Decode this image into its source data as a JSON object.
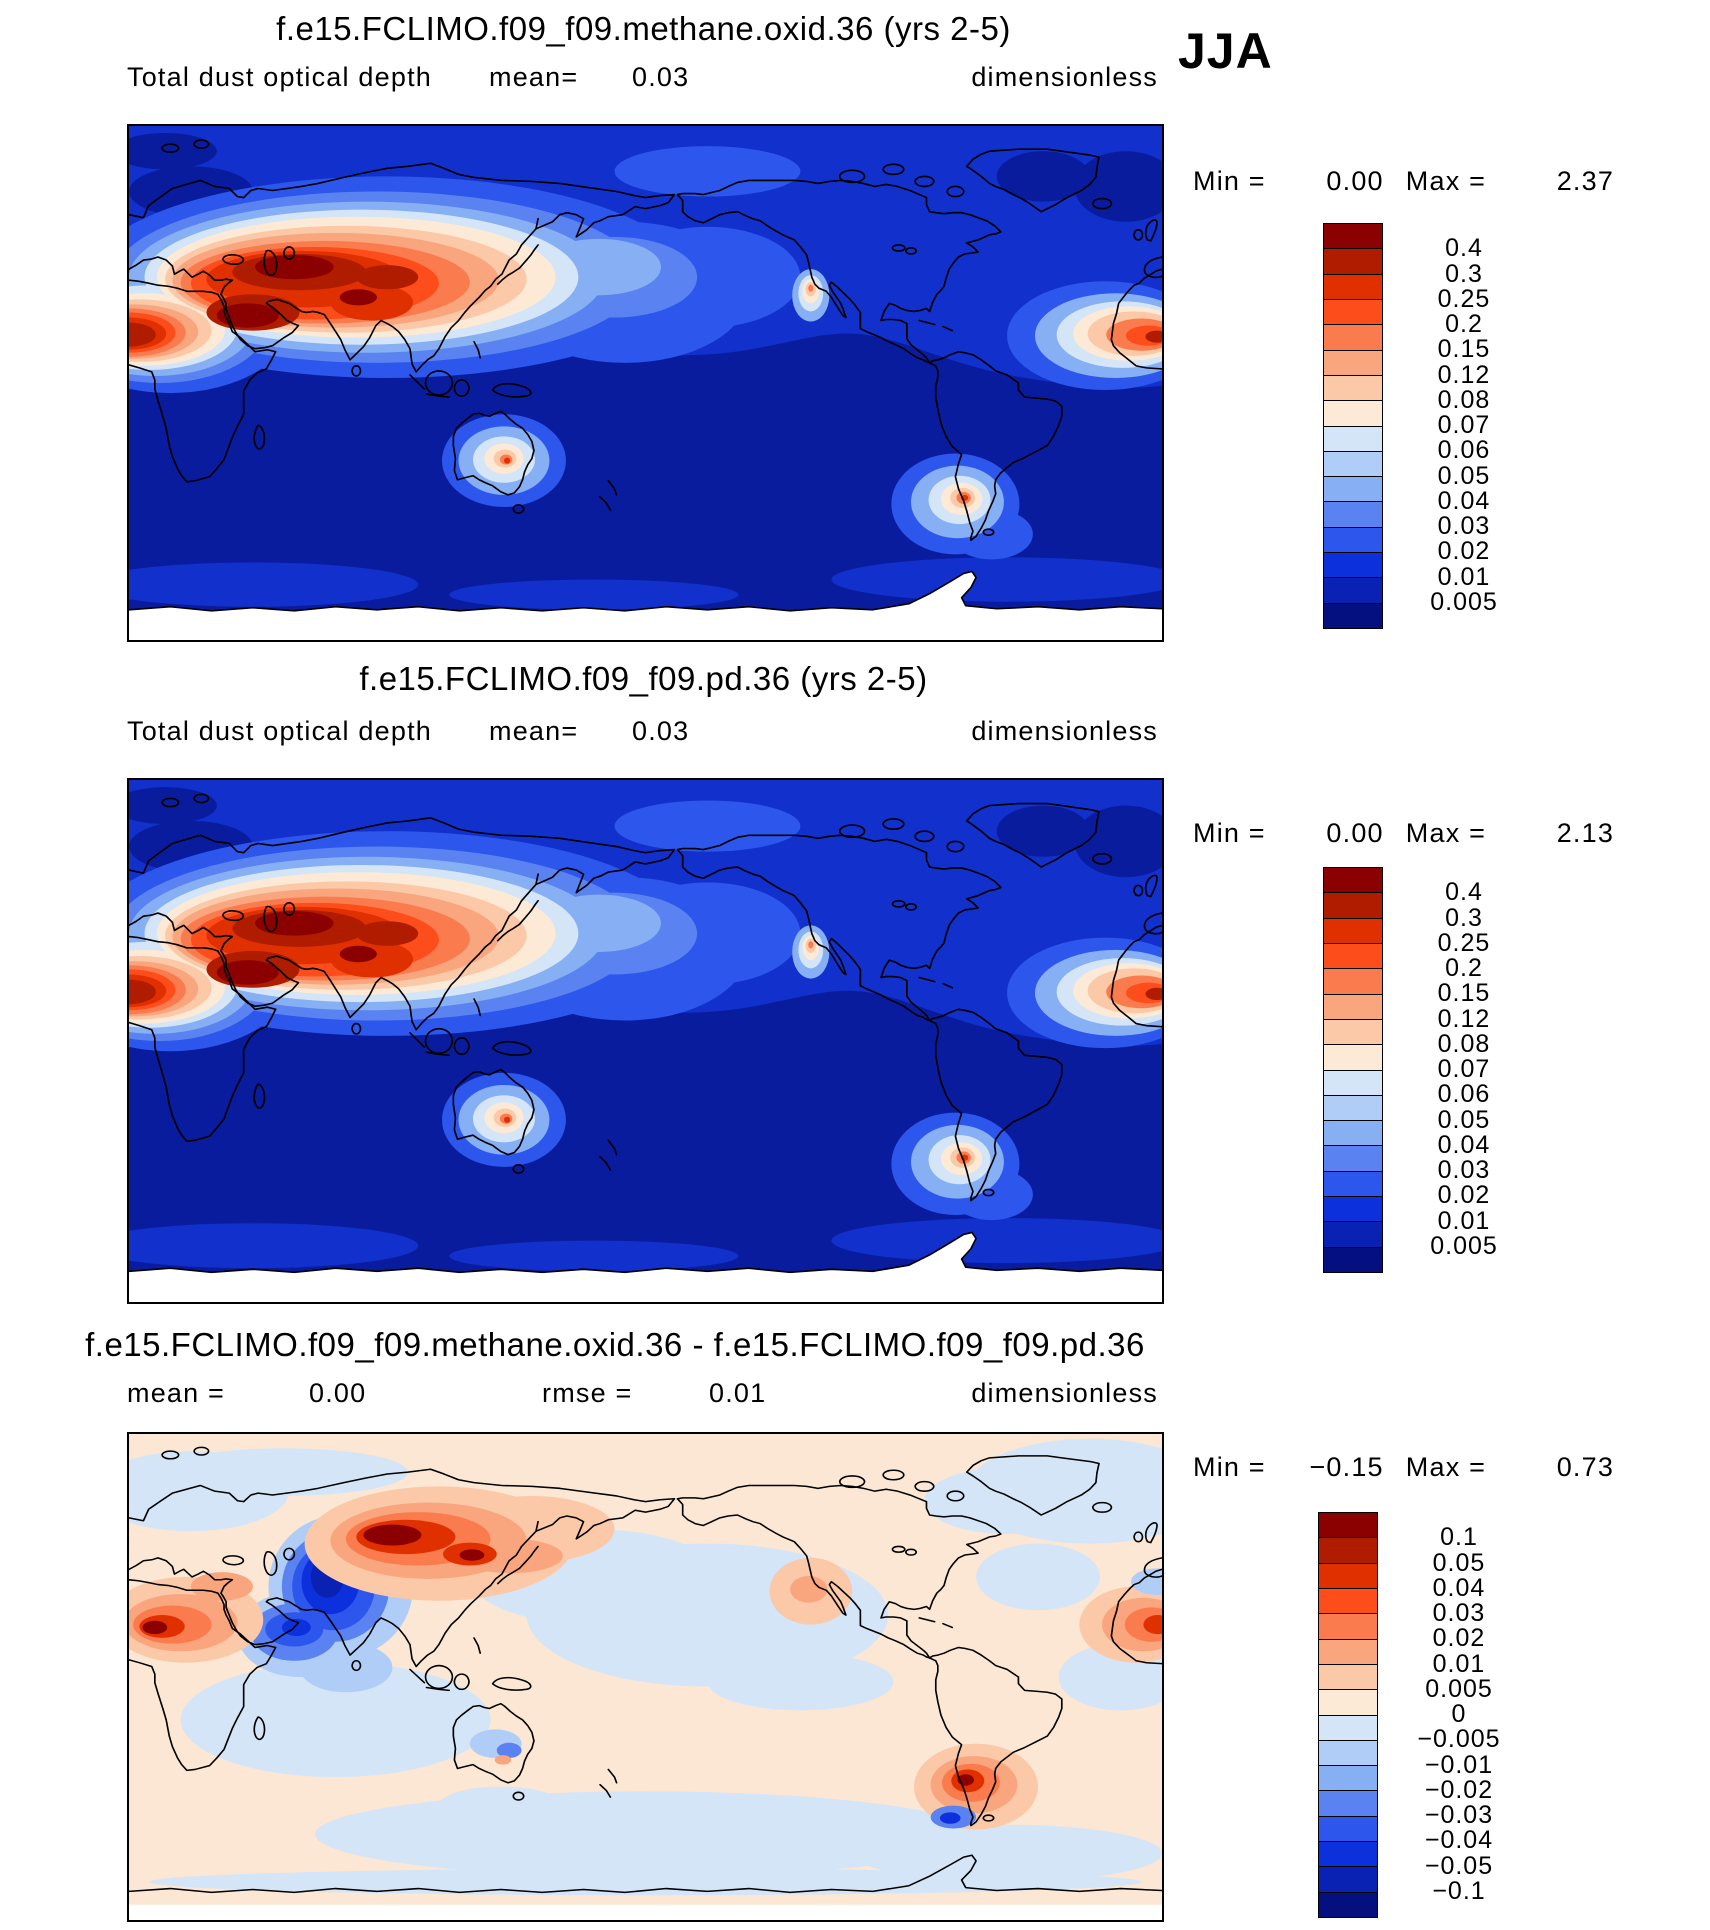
{
  "header": {
    "season": "JJA"
  },
  "panels": [
    {
      "title": "f.e15.FCLIMO.f09_f09.methane.oxid.36 (yrs 2-5)",
      "field_label": "Total dust optical depth",
      "mean_label": "mean=",
      "mean": "0.03",
      "units": "dimensionless",
      "min_label": "Min =",
      "min": "0.00",
      "max_label": "Max =",
      "max": "2.37"
    },
    {
      "title": "f.e15.FCLIMO.f09_f09.pd.36 (yrs 2-5)",
      "field_label": "Total dust optical depth",
      "mean_label": "mean=",
      "mean": "0.03",
      "units": "dimensionless",
      "min_label": "Min =",
      "min": "0.00",
      "max_label": "Max =",
      "max": "2.13"
    },
    {
      "title": "f.e15.FCLIMO.f09_f09.methane.oxid.36 - f.e15.FCLIMO.f09_f09.pd.36",
      "mean_label": "mean =",
      "mean": "0.00",
      "rmse_label": "rmse =",
      "rmse": "0.01",
      "units": "dimensionless",
      "min_label": "Min =",
      "min": "−0.15",
      "max_label": "Max =",
      "max": "0.73"
    }
  ],
  "colorbars": [
    {
      "labels": [
        "0.4",
        "0.3",
        "0.25",
        "0.2",
        "0.15",
        "0.12",
        "0.08",
        "0.07",
        "0.06",
        "0.05",
        "0.04",
        "0.03",
        "0.02",
        "0.01",
        "0.005"
      ],
      "colors": [
        "#8b0000",
        "#b01c00",
        "#e13000",
        "#fd4d1b",
        "#fa7c4e",
        "#f9a57d",
        "#fbc8a8",
        "#fdead6",
        "#d4e5f8",
        "#afcdf6",
        "#86aff4",
        "#5a82f0",
        "#2c56ec",
        "#0d30dd",
        "#0a22b4",
        "#051080"
      ]
    },
    {
      "labels": [
        "0.4",
        "0.3",
        "0.25",
        "0.2",
        "0.15",
        "0.12",
        "0.08",
        "0.07",
        "0.06",
        "0.05",
        "0.04",
        "0.03",
        "0.02",
        "0.01",
        "0.005"
      ],
      "colors": [
        "#8b0000",
        "#b01c00",
        "#e13000",
        "#fd4d1b",
        "#fa7c4e",
        "#f9a57d",
        "#fbc8a8",
        "#fdead6",
        "#d4e5f8",
        "#afcdf6",
        "#86aff4",
        "#5a82f0",
        "#2c56ec",
        "#0d30dd",
        "#0a22b4",
        "#051080"
      ]
    },
    {
      "labels": [
        "0.1",
        "0.05",
        "0.04",
        "0.03",
        "0.02",
        "0.01",
        "0.005",
        "0",
        "−0.005",
        "−0.01",
        "−0.02",
        "−0.03",
        "−0.04",
        "−0.05",
        "−0.1"
      ],
      "colors": [
        "#8b0000",
        "#b01c00",
        "#e13000",
        "#fd4d1b",
        "#fa7c4e",
        "#f9a57d",
        "#fbc8a8",
        "#fdead6",
        "#d4e5f8",
        "#afcdf6",
        "#86aff4",
        "#5a82f0",
        "#2c56ec",
        "#0d30dd",
        "#0a22b4",
        "#051080"
      ]
    }
  ],
  "chart_data": [
    {
      "type": "heatmap",
      "subtype": "filled-contour world map (equirectangular, 0–360°E, JJA season)",
      "title": "f.e15.FCLIMO.f09_f09.methane.oxid.36 (yrs 2-5)",
      "variable": "Total dust optical depth",
      "units": "dimensionless",
      "mean": 0.03,
      "min": 0.0,
      "max": 2.37,
      "contour_levels": [
        0.005,
        0.01,
        0.02,
        0.03,
        0.04,
        0.05,
        0.06,
        0.07,
        0.08,
        0.12,
        0.15,
        0.2,
        0.25,
        0.3,
        0.4
      ],
      "legend_position": "right",
      "palette": "dark blue → light blue → white → orange → dark red (16 bins)",
      "notable_features": [
        "maximum > 0.4 over North Africa, Middle East and Central Asia",
        "Saharan dust plume across the tropical Atlantic (right edge of map)",
        "secondary maxima over central Australia, Patagonia and southwestern North America",
        "values < 0.005 over the Southern Hemisphere oceans"
      ]
    },
    {
      "type": "heatmap",
      "subtype": "filled-contour world map (equirectangular, 0–360°E, JJA season)",
      "title": "f.e15.FCLIMO.f09_f09.pd.36 (yrs 2-5)",
      "variable": "Total dust optical depth",
      "units": "dimensionless",
      "mean": 0.03,
      "min": 0.0,
      "max": 2.13,
      "contour_levels": [
        0.005,
        0.01,
        0.02,
        0.03,
        0.04,
        0.05,
        0.06,
        0.07,
        0.08,
        0.12,
        0.15,
        0.2,
        0.25,
        0.3,
        0.4
      ],
      "legend_position": "right",
      "palette": "dark blue → light blue → white → orange → dark red (16 bins)",
      "notable_features": [
        "spatial pattern nearly identical to panel 1"
      ]
    },
    {
      "type": "heatmap",
      "subtype": "filled-contour difference map (case 1 minus case 2, JJA season)",
      "title": "f.e15.FCLIMO.f09_f09.methane.oxid.36 - f.e15.FCLIMO.f09_f09.pd.36",
      "variable": "Total dust optical depth difference",
      "units": "dimensionless",
      "mean": 0.0,
      "rmse": 0.01,
      "min": -0.15,
      "max": 0.73,
      "contour_levels": [
        -0.1,
        -0.05,
        -0.04,
        -0.03,
        -0.02,
        -0.01,
        -0.005,
        0,
        0.005,
        0.01,
        0.02,
        0.03,
        0.04,
        0.05,
        0.1
      ],
      "legend_position": "right",
      "palette": "blue (negative) → pale → red (positive), 16 bins",
      "notable_features": [
        "positive anomalies over Mongolia/N China, West Africa and Patagonia",
        "strong negative anomalies over the Caspian/Central Asia and Arabia",
        "weak negative (pale blue) anomalies over most oceans"
      ]
    }
  ]
}
